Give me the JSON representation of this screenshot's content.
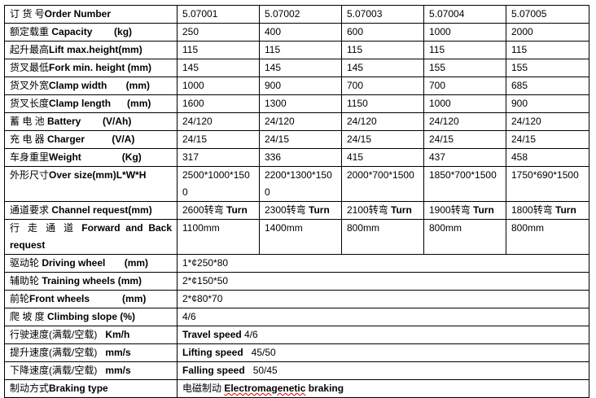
{
  "rows": [
    {
      "cn": "订 货 号",
      "en": "Order Number",
      "values": [
        "5.07001",
        "5.07002",
        "5.07003",
        "5.07004",
        "5.07005"
      ]
    },
    {
      "cn": "额定载重",
      "en": " Capacity        (kg)",
      "values": [
        "250",
        "400",
        "600",
        "1000",
        "2000"
      ]
    },
    {
      "cn": "起升最高",
      "en": "Lift max.height(mm)",
      "values": [
        "115",
        "115",
        "115",
        "115",
        "115"
      ]
    },
    {
      "cn": "货叉最低",
      "en": "Fork min. height (mm)",
      "values": [
        "145",
        "145",
        "145",
        "155",
        "155"
      ]
    },
    {
      "cn": "货叉外宽",
      "en": "Clamp width       (mm)",
      "values": [
        "1000",
        "900",
        "700",
        "700",
        "685"
      ]
    },
    {
      "cn": "货叉长度",
      "en": "Clamp length      (mm)",
      "values": [
        "1600",
        "1300",
        "1150",
        "1000",
        "900"
      ]
    },
    {
      "cn": "蓄 电 池",
      "en": " Battery        (V/Ah)",
      "values": [
        "24/120",
        "24/120",
        "24/120",
        "24/120",
        "24/120"
      ]
    },
    {
      "cn": "充 电 器",
      "en": " Charger          (V/A)",
      "values": [
        "24/15",
        "24/15",
        "24/15",
        "24/15",
        "24/15"
      ]
    },
    {
      "cn": "车身重里",
      "en": "Weight               (Kg)",
      "values": [
        "317",
        "336",
        "415",
        "437",
        "458"
      ]
    },
    {
      "cn": "外形尺寸",
      "en": "Over size(mm)L*W*H",
      "values": [
        "2500*1000*1500",
        "2200*1300*1500",
        "2000*700*1500",
        "1850*700*1500",
        "1750*690*1500"
      ],
      "tall": true
    },
    {
      "cn": "通道要求",
      "en": " Channel request(mm)",
      "values": [
        "2600转弯 Turn",
        "2300转弯 Turn",
        "2100转弯 Turn",
        "1900转弯 Turn",
        "1800转弯 Turn"
      ]
    },
    {
      "cn": "行 走 通 道",
      "en": "Forward and Back request",
      "values": [
        "1100mm",
        "1400mm",
        "800mm",
        "800mm",
        "800mm"
      ],
      "tall": true,
      "justify": true
    },
    {
      "cn": "驱动轮",
      "en": " Driving wheel       (mm)",
      "merged": "1*¢250*80"
    },
    {
      "cn": "辅助轮",
      "en": " Training wheels (mm)",
      "merged": "2*¢150*50"
    },
    {
      "cn": "前轮",
      "en": "Front wheels            (mm)",
      "merged": "2*¢80*70"
    },
    {
      "cn": "爬 坡 度",
      "en": " Climbing slope (%)",
      "merged": "4/6"
    },
    {
      "cn": "行驶速度(满载/空载)",
      "en": "   Km/h",
      "merged_en": "Travel speed",
      "merged": " 4/6"
    },
    {
      "cn": "提升速度(满载/空载)",
      "en": "   mm/s",
      "merged_en": "Lifting speed",
      "merged": "   45/50"
    },
    {
      "cn": "下降速度(满载/空载)",
      "en": "   mm/s",
      "merged_en": "Falling speed",
      "merged": "   50/45"
    },
    {
      "cn": "制动方式",
      "en": "Braking type",
      "merged_cn": "电磁制动 ",
      "merged_en": "Electromagenetic",
      "merged": " braking",
      "wavy": true
    }
  ]
}
